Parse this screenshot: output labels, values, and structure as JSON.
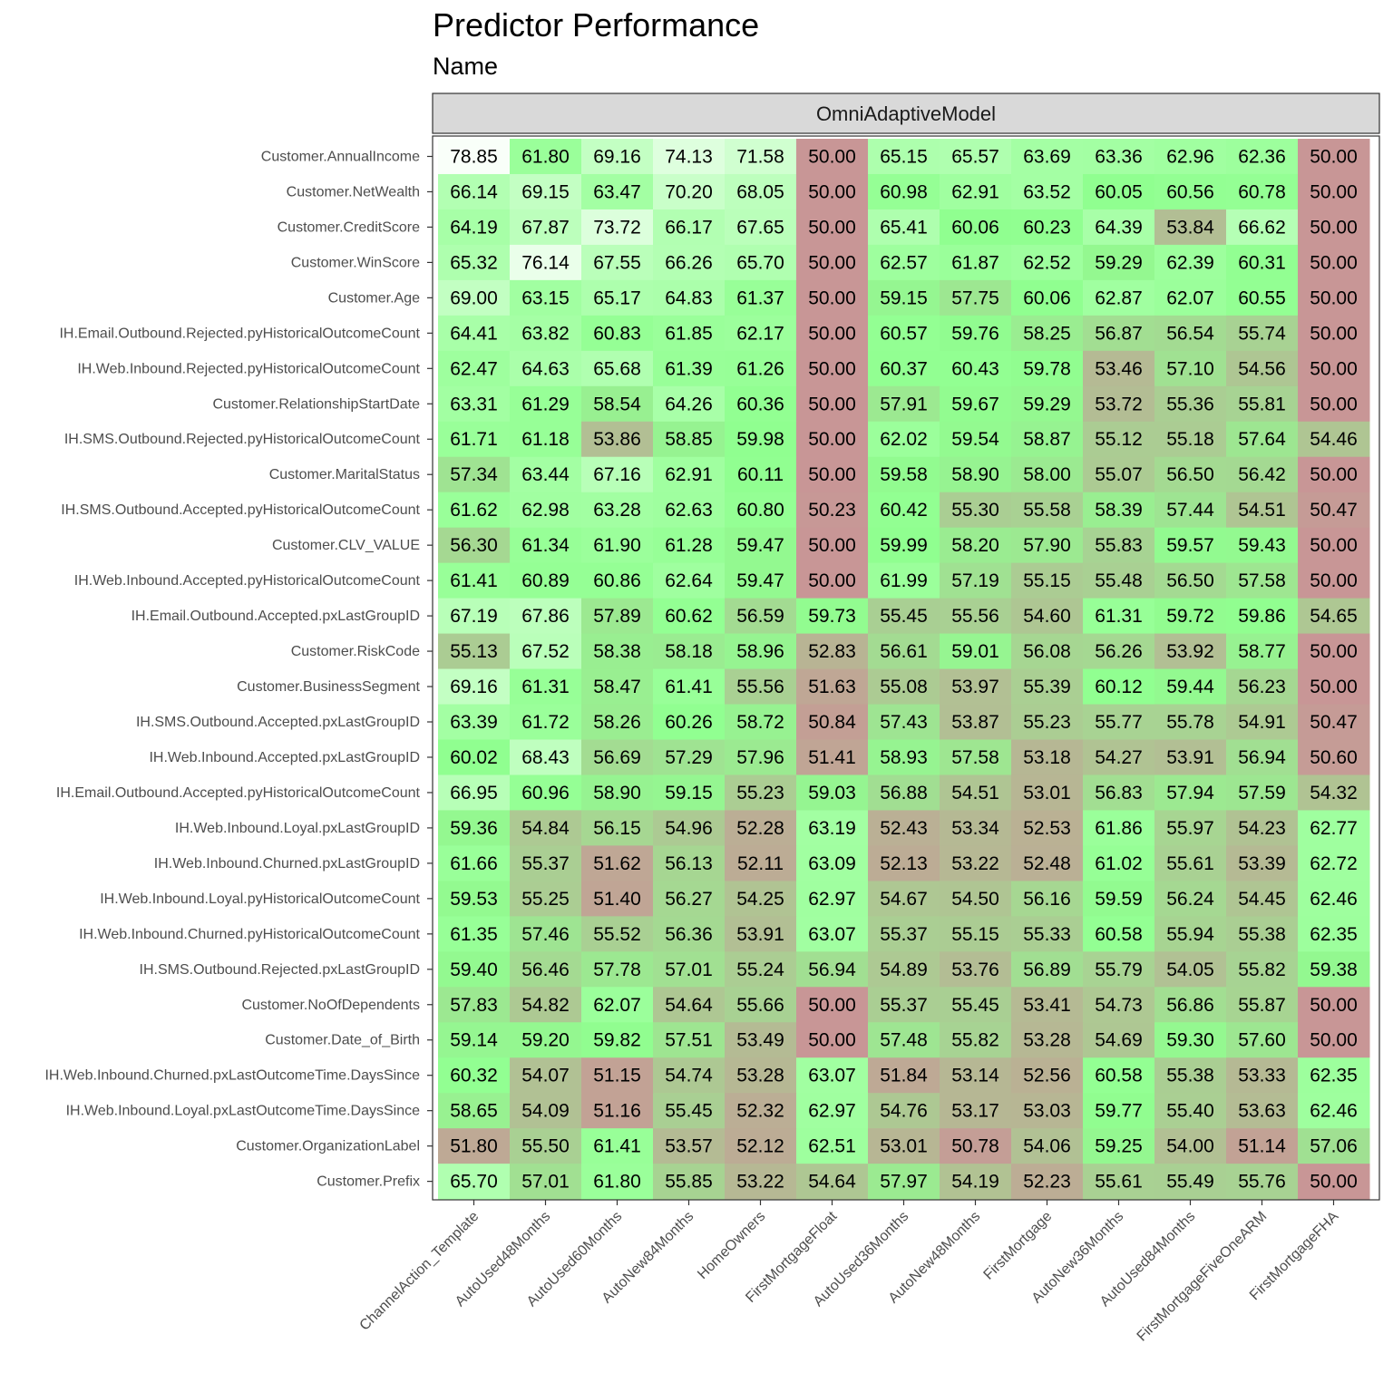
{
  "chart_data": {
    "type": "heatmap",
    "title": "Predictor Performance",
    "subtitle": "Name",
    "facet": "OmniAdaptiveModel",
    "x": [
      "ChannelAction_Template",
      "AutoUsed48Months",
      "AutoUsed60Months",
      "AutoNew84Months",
      "HomeOwners",
      "FirstMortgageFloat",
      "AutoUsed36Months",
      "AutoNew48Months",
      "FirstMortgage",
      "AutoNew36Months",
      "AutoUsed84Months",
      "FirstMortgageFiveOneARM",
      "FirstMortgageFHA"
    ],
    "y": [
      "Customer.AnnualIncome",
      "Customer.NetWealth",
      "Customer.CreditScore",
      "Customer.WinScore",
      "Customer.Age",
      "IH.Email.Outbound.Rejected.pyHistoricalOutcomeCount",
      "IH.Web.Inbound.Rejected.pyHistoricalOutcomeCount",
      "Customer.RelationshipStartDate",
      "IH.SMS.Outbound.Rejected.pyHistoricalOutcomeCount",
      "Customer.MaritalStatus",
      "IH.SMS.Outbound.Accepted.pyHistoricalOutcomeCount",
      "Customer.CLV_VALUE",
      "IH.Web.Inbound.Accepted.pyHistoricalOutcomeCount",
      "IH.Email.Outbound.Accepted.pxLastGroupID",
      "Customer.RiskCode",
      "Customer.BusinessSegment",
      "IH.SMS.Outbound.Accepted.pxLastGroupID",
      "IH.Web.Inbound.Accepted.pxLastGroupID",
      "IH.Email.Outbound.Accepted.pyHistoricalOutcomeCount",
      "IH.Web.Inbound.Loyal.pxLastGroupID",
      "IH.Web.Inbound.Churned.pxLastGroupID",
      "IH.Web.Inbound.Loyal.pyHistoricalOutcomeCount",
      "IH.Web.Inbound.Churned.pyHistoricalOutcomeCount",
      "IH.SMS.Outbound.Rejected.pxLastGroupID",
      "Customer.NoOfDependents",
      "Customer.Date_of_Birth",
      "IH.Web.Inbound.Churned.pxLastOutcomeTime.DaysSince",
      "IH.Web.Inbound.Loyal.pxLastOutcomeTime.DaysSince",
      "Customer.OrganizationLabel",
      "Customer.Prefix"
    ],
    "values": [
      [
        78.85,
        61.8,
        69.16,
        74.13,
        71.58,
        50.0,
        65.15,
        65.57,
        63.69,
        63.36,
        62.96,
        62.36,
        50.0
      ],
      [
        66.14,
        69.15,
        63.47,
        70.2,
        68.05,
        50.0,
        60.98,
        62.91,
        63.52,
        60.05,
        60.56,
        60.78,
        50.0
      ],
      [
        64.19,
        67.87,
        73.72,
        66.17,
        67.65,
        50.0,
        65.41,
        60.06,
        60.23,
        64.39,
        53.84,
        66.62,
        50.0
      ],
      [
        65.32,
        76.14,
        67.55,
        66.26,
        65.7,
        50.0,
        62.57,
        61.87,
        62.52,
        59.29,
        62.39,
        60.31,
        50.0
      ],
      [
        69.0,
        63.15,
        65.17,
        64.83,
        61.37,
        50.0,
        59.15,
        57.75,
        60.06,
        62.87,
        62.07,
        60.55,
        50.0
      ],
      [
        64.41,
        63.82,
        60.83,
        61.85,
        62.17,
        50.0,
        60.57,
        59.76,
        58.25,
        56.87,
        56.54,
        55.74,
        50.0
      ],
      [
        62.47,
        64.63,
        65.68,
        61.39,
        61.26,
        50.0,
        60.37,
        60.43,
        59.78,
        53.46,
        57.1,
        54.56,
        50.0
      ],
      [
        63.31,
        61.29,
        58.54,
        64.26,
        60.36,
        50.0,
        57.91,
        59.67,
        59.29,
        53.72,
        55.36,
        55.81,
        50.0
      ],
      [
        61.71,
        61.18,
        53.86,
        58.85,
        59.98,
        50.0,
        62.02,
        59.54,
        58.87,
        55.12,
        55.18,
        57.64,
        54.46
      ],
      [
        57.34,
        63.44,
        67.16,
        62.91,
        60.11,
        50.0,
        59.58,
        58.9,
        58.0,
        55.07,
        56.5,
        56.42,
        50.0
      ],
      [
        61.62,
        62.98,
        63.28,
        62.63,
        60.8,
        50.23,
        60.42,
        55.3,
        55.58,
        58.39,
        57.44,
        54.51,
        50.47
      ],
      [
        56.3,
        61.34,
        61.9,
        61.28,
        59.47,
        50.0,
        59.99,
        58.2,
        57.9,
        55.83,
        59.57,
        59.43,
        50.0
      ],
      [
        61.41,
        60.89,
        60.86,
        62.64,
        59.47,
        50.0,
        61.99,
        57.19,
        55.15,
        55.48,
        56.5,
        57.58,
        50.0
      ],
      [
        67.19,
        67.86,
        57.89,
        60.62,
        56.59,
        59.73,
        55.45,
        55.56,
        54.6,
        61.31,
        59.72,
        59.86,
        54.65
      ],
      [
        55.13,
        67.52,
        58.38,
        58.18,
        58.96,
        52.83,
        56.61,
        59.01,
        56.08,
        56.26,
        53.92,
        58.77,
        50.0
      ],
      [
        69.16,
        61.31,
        58.47,
        61.41,
        55.56,
        51.63,
        55.08,
        53.97,
        55.39,
        60.12,
        59.44,
        56.23,
        50.0
      ],
      [
        63.39,
        61.72,
        58.26,
        60.26,
        58.72,
        50.84,
        57.43,
        53.87,
        55.23,
        55.77,
        55.78,
        54.91,
        50.47
      ],
      [
        60.02,
        68.43,
        56.69,
        57.29,
        57.96,
        51.41,
        58.93,
        57.58,
        53.18,
        54.27,
        53.91,
        56.94,
        50.6
      ],
      [
        66.95,
        60.96,
        58.9,
        59.15,
        55.23,
        59.03,
        56.88,
        54.51,
        53.01,
        56.83,
        57.94,
        57.59,
        54.32
      ],
      [
        59.36,
        54.84,
        56.15,
        54.96,
        52.28,
        63.19,
        52.43,
        53.34,
        52.53,
        61.86,
        55.97,
        54.23,
        62.77
      ],
      [
        61.66,
        55.37,
        51.62,
        56.13,
        52.11,
        63.09,
        52.13,
        53.22,
        52.48,
        61.02,
        55.61,
        53.39,
        62.72
      ],
      [
        59.53,
        55.25,
        51.4,
        56.27,
        54.25,
        62.97,
        54.67,
        54.5,
        56.16,
        59.59,
        56.24,
        54.45,
        62.46
      ],
      [
        61.35,
        57.46,
        55.52,
        56.36,
        53.91,
        63.07,
        55.37,
        55.15,
        55.33,
        60.58,
        55.94,
        55.38,
        62.35
      ],
      [
        59.4,
        56.46,
        57.78,
        57.01,
        55.24,
        56.94,
        54.89,
        53.76,
        56.89,
        55.79,
        54.05,
        55.82,
        59.38
      ],
      [
        57.83,
        54.82,
        62.07,
        54.64,
        55.66,
        50.0,
        55.37,
        55.45,
        53.41,
        54.73,
        56.86,
        55.87,
        50.0
      ],
      [
        59.14,
        59.2,
        59.82,
        57.51,
        53.49,
        50.0,
        57.48,
        55.82,
        53.28,
        54.69,
        59.3,
        57.6,
        50.0
      ],
      [
        60.32,
        54.07,
        51.15,
        54.74,
        53.28,
        63.07,
        51.84,
        53.14,
        52.56,
        60.58,
        55.38,
        53.33,
        62.35
      ],
      [
        58.65,
        54.09,
        51.16,
        55.45,
        52.32,
        62.97,
        54.76,
        53.17,
        53.03,
        59.77,
        55.4,
        53.63,
        62.46
      ],
      [
        51.8,
        55.5,
        61.41,
        53.57,
        52.12,
        62.51,
        53.01,
        50.78,
        54.06,
        59.25,
        54.0,
        51.14,
        57.06
      ],
      [
        65.7,
        57.01,
        61.8,
        55.85,
        53.22,
        54.64,
        57.97,
        54.19,
        52.23,
        55.61,
        55.49,
        55.76,
        50.0
      ]
    ],
    "value_format": "0.00",
    "colors": {
      "low": "#c89696",
      "mid": "#90ff90",
      "high": "#ffffff",
      "background": "#ffffff",
      "strip_fill": "#d9d9d9",
      "panel_border": "#333333"
    },
    "grid": false
  }
}
